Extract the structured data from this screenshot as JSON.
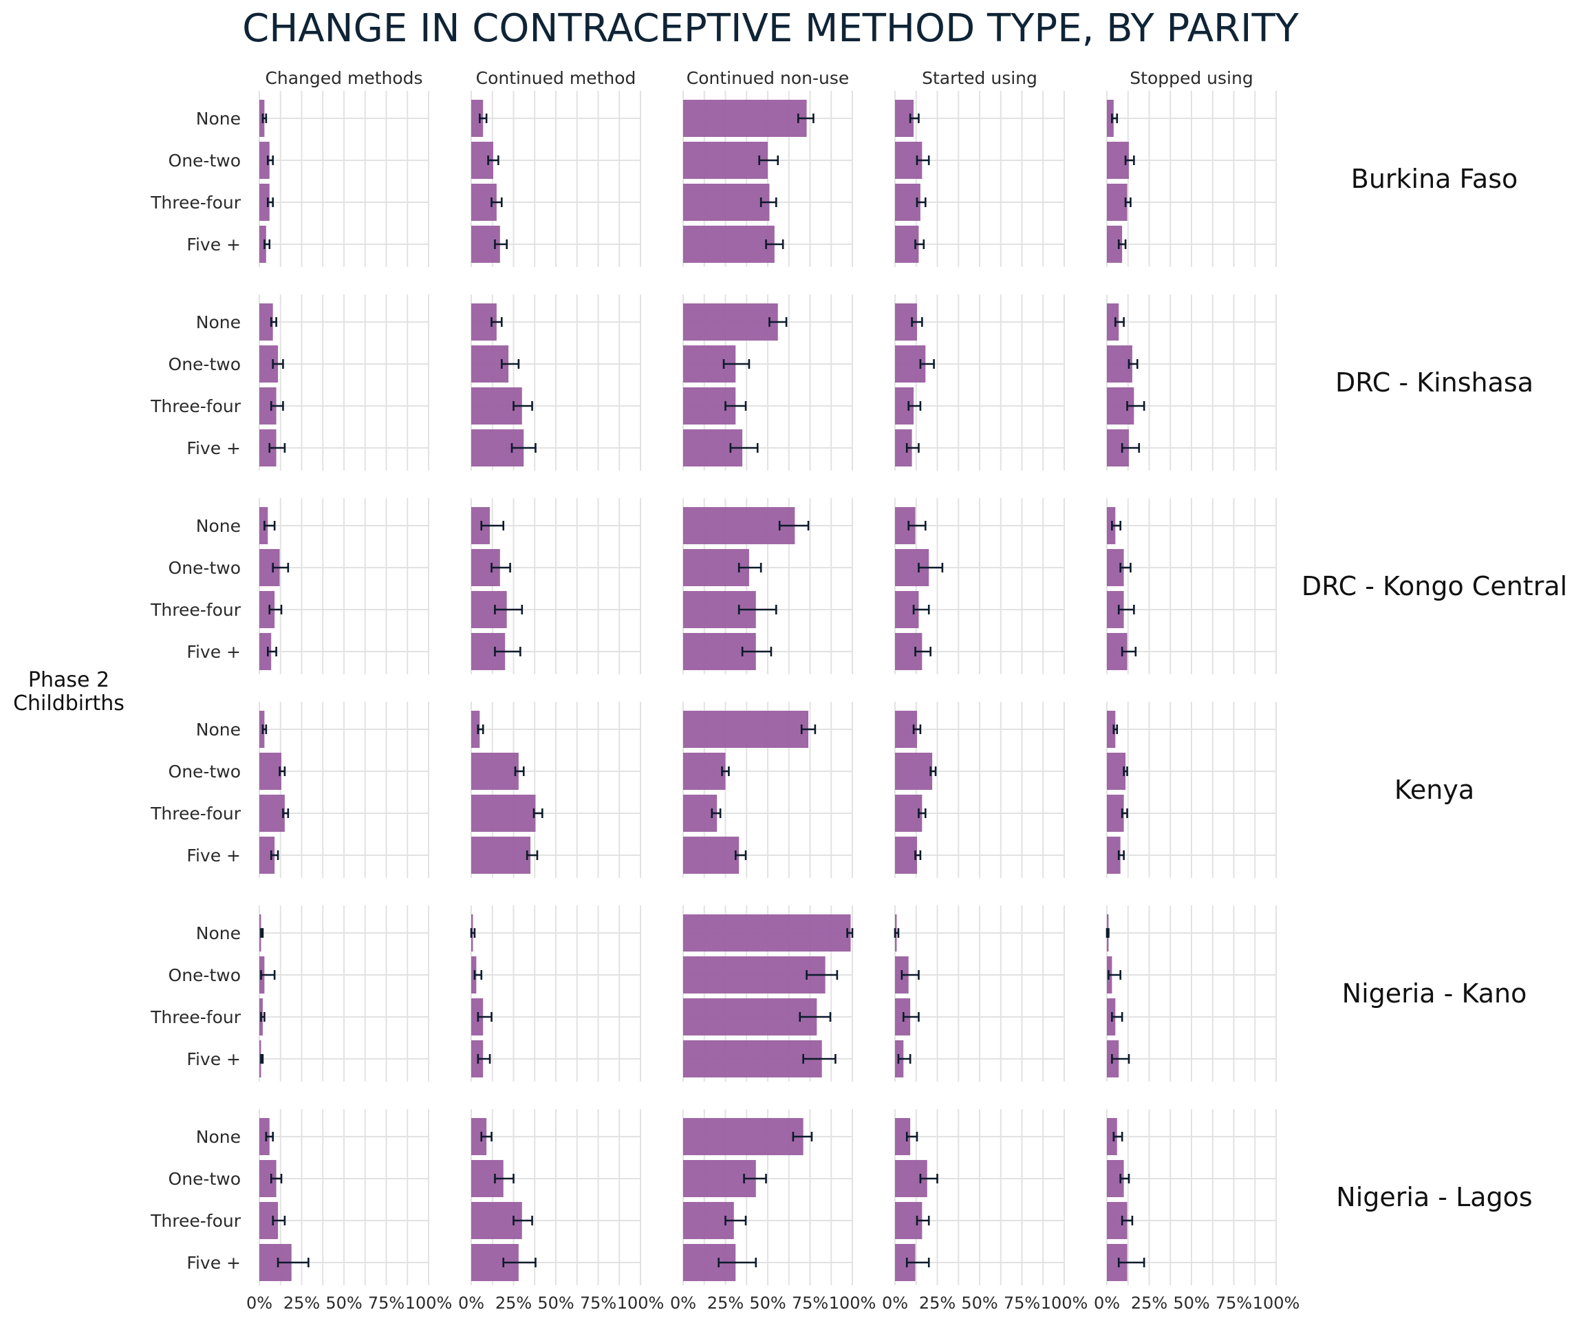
{
  "chart_data": {
    "type": "bar",
    "orientation": "horizontal",
    "title": "CHANGE IN CONTRACEPTIVE METHOD TYPE, BY PARITY",
    "ylabel": "Phase 2\nChildbirths",
    "xlim": [
      0,
      100
    ],
    "x_ticks": [
      "0%",
      "25%",
      "50%",
      "75%",
      "100%"
    ],
    "categories": [
      "None",
      "One-two",
      "Three-four",
      "Five +"
    ],
    "columns": [
      "Changed methods",
      "Continued method",
      "Continued non-use",
      "Started using",
      "Stopped using"
    ],
    "grid": true,
    "bar_color": "#9a5fa0",
    "error_bar_color": "#0c1a2b",
    "rows": [
      {
        "name": "Burkina Faso",
        "panels": [
          {
            "values": [
              3,
              6,
              6,
              4
            ],
            "ci_low": [
              2,
              5,
              5,
              3
            ],
            "ci_high": [
              4,
              8,
              8,
              6
            ]
          },
          {
            "values": [
              7,
              13,
              15,
              17
            ],
            "ci_low": [
              5,
              10,
              12,
              14
            ],
            "ci_high": [
              9,
              16,
              18,
              21
            ]
          },
          {
            "values": [
              73,
              50,
              51,
              54
            ],
            "ci_low": [
              68,
              45,
              46,
              49
            ],
            "ci_high": [
              77,
              56,
              55,
              59
            ]
          },
          {
            "values": [
              11,
              16,
              15,
              14
            ],
            "ci_low": [
              9,
              13,
              13,
              12
            ],
            "ci_high": [
              14,
              20,
              18,
              17
            ]
          },
          {
            "values": [
              4,
              13,
              12,
              9
            ],
            "ci_low": [
              3,
              11,
              11,
              7
            ],
            "ci_high": [
              6,
              16,
              14,
              11
            ]
          }
        ]
      },
      {
        "name": "DRC - Kinshasa",
        "panels": [
          {
            "values": [
              8,
              11,
              10,
              10
            ],
            "ci_low": [
              7,
              8,
              7,
              6
            ],
            "ci_high": [
              10,
              14,
              14,
              15
            ]
          },
          {
            "values": [
              15,
              22,
              30,
              31
            ],
            "ci_low": [
              12,
              18,
              25,
              24
            ],
            "ci_high": [
              18,
              28,
              36,
              38
            ]
          },
          {
            "values": [
              56,
              31,
              31,
              35
            ],
            "ci_low": [
              51,
              24,
              25,
              28
            ],
            "ci_high": [
              61,
              39,
              37,
              44
            ]
          },
          {
            "values": [
              13,
              18,
              11,
              10
            ],
            "ci_low": [
              10,
              15,
              8,
              7
            ],
            "ci_high": [
              16,
              23,
              15,
              14
            ]
          },
          {
            "values": [
              7,
              15,
              16,
              13
            ],
            "ci_low": [
              5,
              13,
              12,
              9
            ],
            "ci_high": [
              10,
              18,
              22,
              19
            ]
          }
        ]
      },
      {
        "name": "DRC - Kongo Central",
        "panels": [
          {
            "values": [
              5,
              12,
              9,
              7
            ],
            "ci_low": [
              3,
              8,
              6,
              5
            ],
            "ci_high": [
              9,
              17,
              13,
              10
            ]
          },
          {
            "values": [
              11,
              17,
              21,
              20
            ],
            "ci_low": [
              6,
              12,
              14,
              14
            ],
            "ci_high": [
              19,
              23,
              30,
              29
            ]
          },
          {
            "values": [
              66,
              39,
              43,
              43
            ],
            "ci_low": [
              57,
              33,
              33,
              35
            ],
            "ci_high": [
              74,
              46,
              55,
              52
            ]
          },
          {
            "values": [
              12,
              20,
              14,
              16
            ],
            "ci_low": [
              8,
              14,
              11,
              12
            ],
            "ci_high": [
              18,
              28,
              20,
              21
            ]
          },
          {
            "values": [
              5,
              10,
              10,
              12
            ],
            "ci_low": [
              3,
              8,
              7,
              9
            ],
            "ci_high": [
              8,
              14,
              16,
              17
            ]
          }
        ]
      },
      {
        "name": "Kenya",
        "panels": [
          {
            "values": [
              3,
              13,
              15,
              9
            ],
            "ci_low": [
              2,
              12,
              14,
              7
            ],
            "ci_high": [
              4,
              15,
              17,
              11
            ]
          },
          {
            "values": [
              5,
              28,
              38,
              35
            ],
            "ci_low": [
              4,
              26,
              37,
              33
            ],
            "ci_high": [
              7,
              31,
              42,
              39
            ]
          },
          {
            "values": [
              74,
              25,
              20,
              33
            ],
            "ci_low": [
              70,
              23,
              17,
              31
            ],
            "ci_high": [
              78,
              27,
              22,
              37
            ]
          },
          {
            "values": [
              13,
              22,
              16,
              13
            ],
            "ci_low": [
              11,
              21,
              14,
              12
            ],
            "ci_high": [
              15,
              24,
              18,
              15
            ]
          },
          {
            "values": [
              5,
              11,
              10,
              8
            ],
            "ci_low": [
              4,
              10,
              9,
              7
            ],
            "ci_high": [
              6,
              12,
              12,
              10
            ]
          }
        ]
      },
      {
        "name": "Nigeria - Kano",
        "panels": [
          {
            "values": [
              1,
              3,
              2,
              1
            ],
            "ci_low": [
              1,
              1,
              1,
              1
            ],
            "ci_high": [
              2,
              9,
              3,
              2
            ]
          },
          {
            "values": [
              1,
              3,
              7,
              7
            ],
            "ci_low": [
              0,
              2,
              4,
              4
            ],
            "ci_high": [
              2,
              6,
              12,
              11
            ]
          },
          {
            "values": [
              99,
              84,
              79,
              82
            ],
            "ci_low": [
              97,
              73,
              69,
              71
            ],
            "ci_high": [
              100,
              91,
              87,
              90
            ]
          },
          {
            "values": [
              1,
              8,
              9,
              5
            ],
            "ci_low": [
              0,
              4,
              5,
              2
            ],
            "ci_high": [
              2,
              14,
              14,
              9
            ]
          },
          {
            "values": [
              1,
              3,
              5,
              7
            ],
            "ci_low": [
              0,
              1,
              3,
              3
            ],
            "ci_high": [
              1,
              8,
              9,
              13
            ]
          }
        ]
      },
      {
        "name": "Nigeria - Lagos",
        "panels": [
          {
            "values": [
              6,
              10,
              11,
              19
            ],
            "ci_low": [
              4,
              7,
              8,
              11
            ],
            "ci_high": [
              8,
              13,
              15,
              29
            ]
          },
          {
            "values": [
              9,
              19,
              30,
              28
            ],
            "ci_low": [
              6,
              14,
              25,
              19
            ],
            "ci_high": [
              12,
              25,
              36,
              38
            ]
          },
          {
            "values": [
              71,
              43,
              30,
              31
            ],
            "ci_low": [
              65,
              36,
              25,
              21
            ],
            "ci_high": [
              76,
              49,
              37,
              43
            ]
          },
          {
            "values": [
              9,
              19,
              16,
              12
            ],
            "ci_low": [
              7,
              15,
              13,
              7
            ],
            "ci_high": [
              13,
              25,
              20,
              20
            ]
          },
          {
            "values": [
              6,
              10,
              12,
              12
            ],
            "ci_low": [
              4,
              8,
              9,
              7
            ],
            "ci_high": [
              9,
              13,
              15,
              22
            ]
          }
        ]
      }
    ]
  }
}
